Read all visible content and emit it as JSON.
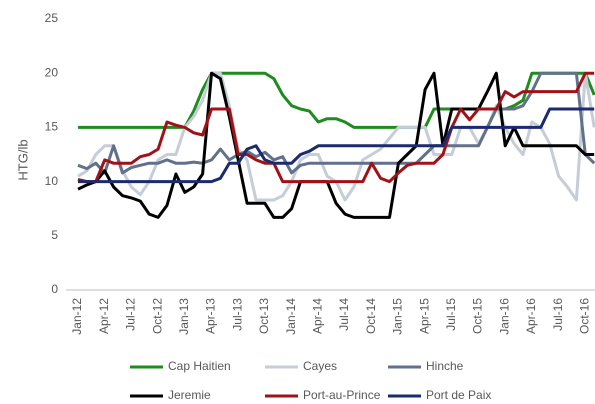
{
  "chart_data": {
    "type": "line",
    "y_label": "HTG/lb",
    "categories": [
      "Jan-12",
      null,
      null,
      "Apr-12",
      null,
      null,
      "Jul-12",
      null,
      null,
      "Oct-12",
      null,
      null,
      "Jan-13",
      null,
      null,
      "Apr-13",
      null,
      null,
      "Jul-13",
      null,
      null,
      "Oct-13",
      null,
      null,
      "Jan-14",
      null,
      null,
      "Apr-14",
      null,
      null,
      "Jul-14",
      null,
      null,
      "Oct-14",
      null,
      null,
      "Jan-15",
      null,
      null,
      "Apr-15",
      null,
      null,
      "Jul-15",
      null,
      null,
      "Oct-15",
      null,
      null,
      "Jan-16",
      null,
      null,
      "Apr-16",
      null,
      null,
      "Jul-16",
      null,
      null,
      "Oct-16",
      null
    ],
    "series": [
      {
        "name": "Cap Haitien",
        "color": "#1e8c1e",
        "values": [
          15,
          15,
          15,
          15,
          15,
          15,
          15,
          15,
          15,
          15,
          15,
          15,
          15,
          16.5,
          18.5,
          20,
          20,
          20,
          20,
          20,
          20,
          20,
          19.5,
          18,
          17,
          16.7,
          16.5,
          15.5,
          15.8,
          15.8,
          15.5,
          15,
          15,
          15,
          15,
          15,
          15,
          15,
          15,
          15,
          16.7,
          16.7,
          16.7,
          16.7,
          16.7,
          16.7,
          16.7,
          16.7,
          16.7,
          17,
          17.5,
          20,
          20,
          20,
          20,
          20,
          20,
          20,
          18
        ]
      },
      {
        "name": "Cayes",
        "color": "#c5cdd8",
        "values": [
          10.5,
          11,
          12.5,
          13.3,
          13.3,
          11,
          9.5,
          8.8,
          10,
          12,
          12.5,
          12.5,
          15,
          16,
          17.5,
          20,
          20,
          17,
          13,
          12,
          8.3,
          8.3,
          8.3,
          8.7,
          10,
          12,
          12.5,
          12.5,
          10.5,
          10,
          8.3,
          9.5,
          12,
          12.5,
          13,
          14,
          15,
          15,
          15,
          15,
          12.5,
          12.5,
          12.5,
          15,
          15,
          13.5,
          15,
          17,
          15,
          13.5,
          12.5,
          15.5,
          15,
          13.5,
          10.5,
          9.5,
          8.3,
          20,
          15
        ]
      },
      {
        "name": "Hinche",
        "color": "#607189",
        "values": [
          11.5,
          11.2,
          11.7,
          10.8,
          13.3,
          10.8,
          11.3,
          11.5,
          11.7,
          11.7,
          12,
          11.7,
          11.7,
          11.8,
          11.7,
          12,
          13,
          12,
          12.5,
          12.8,
          12.3,
          12.7,
          12,
          12.3,
          10.8,
          11.5,
          11.7,
          11.7,
          11.7,
          11.7,
          11.7,
          11.7,
          11.7,
          11.7,
          11.7,
          11.7,
          11.7,
          11.7,
          11.7,
          12.5,
          13.3,
          13.3,
          13.3,
          13.3,
          13.3,
          13.3,
          15,
          16.7,
          16.7,
          16.7,
          17,
          18.3,
          20,
          20,
          20,
          20,
          20,
          12.5,
          11.7
        ]
      },
      {
        "name": "Jeremie",
        "color": "#000000",
        "values": [
          9.3,
          9.7,
          10,
          11,
          9.5,
          8.7,
          8.5,
          8.2,
          7,
          6.7,
          7.8,
          10.7,
          9,
          9.5,
          10.7,
          20,
          19.5,
          16,
          12,
          8,
          8,
          8,
          6.7,
          6.7,
          7.5,
          10,
          10,
          10,
          10,
          8,
          7,
          6.7,
          6.7,
          6.7,
          6.7,
          6.7,
          11.7,
          12.5,
          13.3,
          18.5,
          20,
          13.3,
          16.7,
          16.7,
          16.7,
          16.7,
          18.3,
          20,
          13.3,
          15,
          13.3,
          13.3,
          13.3,
          13.3,
          13.3,
          13.3,
          13.3,
          12.5,
          12.5
        ]
      },
      {
        "name": "Port-au-Prince",
        "color": "#a01218",
        "values": [
          10.2,
          10,
          10,
          12,
          11.7,
          11.7,
          11.7,
          12.3,
          12.5,
          13,
          15.5,
          15.2,
          15,
          14.5,
          14.3,
          16.7,
          16.7,
          16.7,
          12.5,
          12.5,
          12,
          11.7,
          11.7,
          10,
          10,
          10,
          10,
          10,
          10,
          10,
          10,
          10,
          10,
          11.7,
          10.3,
          10,
          10.8,
          11.5,
          11.7,
          11.7,
          11.7,
          12.5,
          15,
          16.7,
          15.7,
          16.7,
          16.7,
          16.7,
          18.3,
          17.8,
          18.3,
          18.3,
          18.3,
          18.3,
          18.3,
          18.3,
          18.3,
          20,
          20
        ]
      },
      {
        "name": "Port de Paix",
        "color": "#1c2a6e",
        "values": [
          10,
          10,
          10,
          10,
          10,
          10,
          10,
          10,
          10,
          10,
          10,
          10,
          10,
          10,
          10,
          10,
          10.3,
          11.7,
          11.7,
          13,
          13.3,
          12,
          11.7,
          11.7,
          11.7,
          12.5,
          12.8,
          13.3,
          13.3,
          13.3,
          13.3,
          13.3,
          13.3,
          13.3,
          13.3,
          13.3,
          13.3,
          13.3,
          13.3,
          13.3,
          13.3,
          13.3,
          15,
          15,
          15,
          15,
          15,
          15,
          15,
          15,
          15,
          15,
          15,
          16.7,
          16.7,
          16.7,
          16.7,
          16.7,
          16.7
        ]
      }
    ],
    "ylim": [
      0,
      25
    ],
    "yticks": [
      0,
      5,
      10,
      15,
      20,
      25
    ],
    "grid": false
  }
}
